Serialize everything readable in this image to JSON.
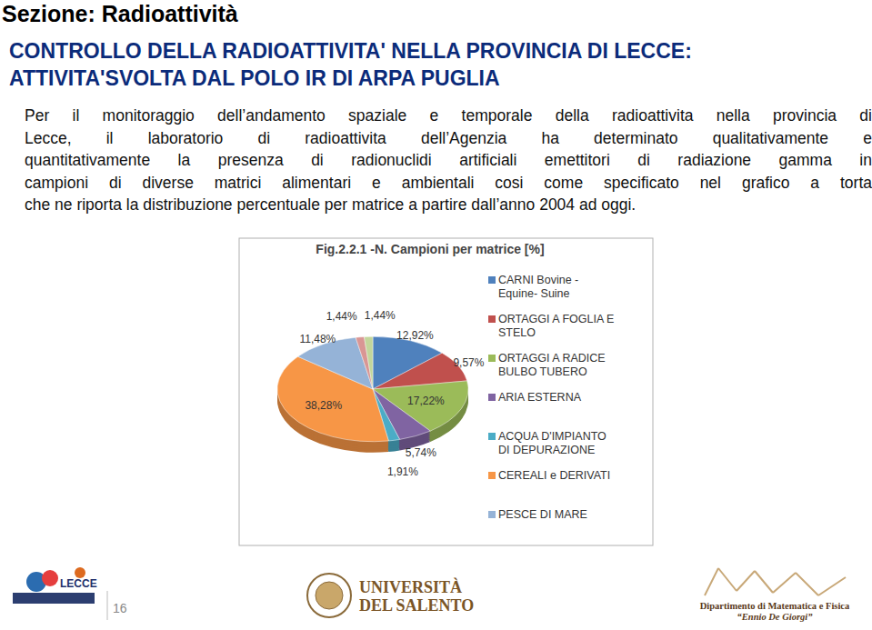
{
  "page": {
    "section": "Sezione: Radioattività",
    "title": [
      "CONTROLLO DELLA RADIOATTIVITA' NELLA PROVINCIA DI LECCE:",
      "ATTIVITA'SVOLTA DAL POLO IR DI ARPA PUGLIA"
    ],
    "paragraph": [
      "Per il monitoraggio dell’andamento spaziale e temporale della radioattivita nella provincia di",
      "Lecce, il laboratorio di radioattivita dell’Agenzia ha determinato qualitativamente e",
      "quantitativamente la presenza di radionuclidi artificiali emettitori di radiazione gamma in",
      "campioni di diverse matrici alimentari e ambientali cosi come specificato nel grafico a torta",
      "che ne riporta la distribuzione percentuale per matrice a partire dall’anno 2004 ad oggi."
    ],
    "footer": {
      "page_number": 16,
      "logo_left": "LECCE",
      "university": [
        "UNIVERSITÀ",
        "DEL SALENTO"
      ],
      "department": [
        "Dipartimento di Matematica e Fisica",
        "“Ennio De Giorgi”"
      ]
    }
  },
  "chart_data": {
    "type": "pie",
    "title": "Fig.2.2.1 -N. Campioni per matrice [%]",
    "categories": [
      "CARNI Bovine -\nEquine- Suine",
      "ORTAGGI A FOGLIA E\nSTELO",
      "ORTAGGI A RADICE\nBULBO TUBERO",
      "ARIA ESTERNA",
      "ACQUA D'IMPIANTO\nDI DEPURAZIONE",
      "CEREALI e DERIVATI",
      "PESCE DI MARE",
      null,
      null
    ],
    "values": [
      12.92,
      9.57,
      17.22,
      5.74,
      1.91,
      38.28,
      11.48,
      1.44,
      1.44
    ],
    "value_labels": [
      "12,92%",
      "9,57%",
      "17,22%",
      "5,74%",
      "1,91%",
      "38,28%",
      "11,48%",
      "1,44%",
      "1,44%"
    ],
    "colors": [
      "#4f81bd",
      "#c0504d",
      "#9bbb59",
      "#8064a2",
      "#4bacc6",
      "#f79646",
      "#95b3d7",
      "#d99694",
      "#c3d69b"
    ],
    "data_labels": true,
    "legend": "right"
  }
}
